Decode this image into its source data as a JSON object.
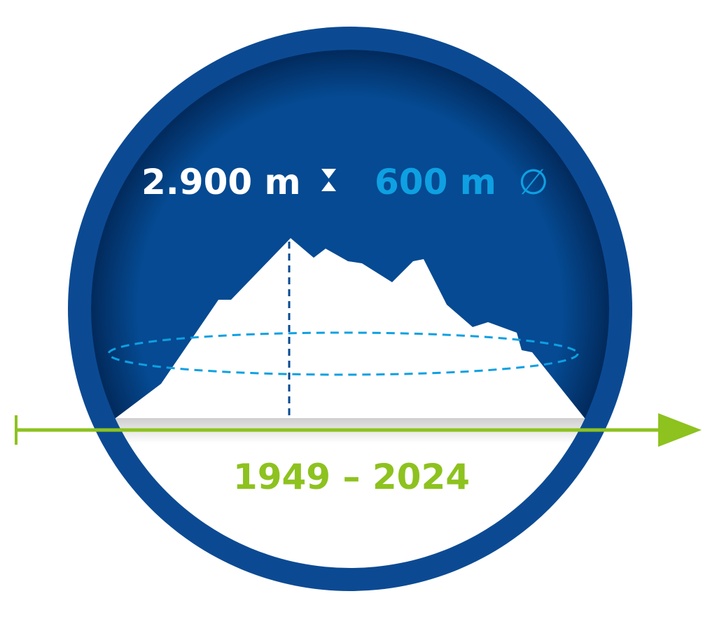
{
  "height_label": "2.900 m",
  "height_icon": "hourglass-altitude-icon",
  "diameter_label": "600 m",
  "diameter_symbol": "∅",
  "period_label": "1949 – 2024",
  "colors": {
    "ring_blue": "#0b4a93",
    "inner_blue": "#054a92",
    "light_blue": "#0ea0e2",
    "green": "#8dc21f",
    "white": "#ffffff"
  }
}
